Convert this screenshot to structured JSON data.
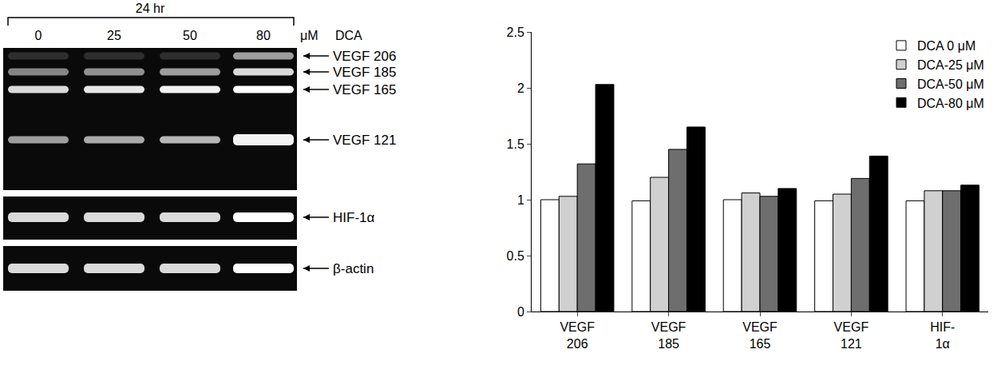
{
  "gel": {
    "header": "24 hr",
    "lanes": [
      0,
      25,
      50,
      80
    ],
    "unit": "μM",
    "treatment": "DCA",
    "bands": [
      "VEGF 206",
      "VEGF 185",
      "VEGF 165",
      "VEGF 121"
    ],
    "panels": [
      "HIF-1α",
      "β-actin"
    ]
  },
  "chart_data": {
    "type": "bar",
    "categories": [
      "VEGF 206",
      "VEGF 185",
      "VEGF 165",
      "VEGF 121",
      "HIF-1α"
    ],
    "series": [
      {
        "name": "DCA 0 μM",
        "color": "#ffffff",
        "values": [
          1.0,
          0.99,
          1.0,
          0.99,
          0.99
        ]
      },
      {
        "name": "DCA-25 μM",
        "color": "#d0d0d0",
        "values": [
          1.03,
          1.2,
          1.06,
          1.05,
          1.08
        ]
      },
      {
        "name": "DCA-50 μM",
        "color": "#6e6e6e",
        "values": [
          1.32,
          1.45,
          1.03,
          1.19,
          1.08
        ]
      },
      {
        "name": "DCA-80 μM",
        "color": "#000000",
        "values": [
          2.03,
          1.65,
          1.1,
          1.39,
          1.13
        ]
      }
    ],
    "ylim": [
      0,
      2.5
    ],
    "yticks": [
      0,
      0.5,
      1,
      1.5,
      2,
      2.5
    ],
    "grid": false,
    "legend": "upper right"
  }
}
